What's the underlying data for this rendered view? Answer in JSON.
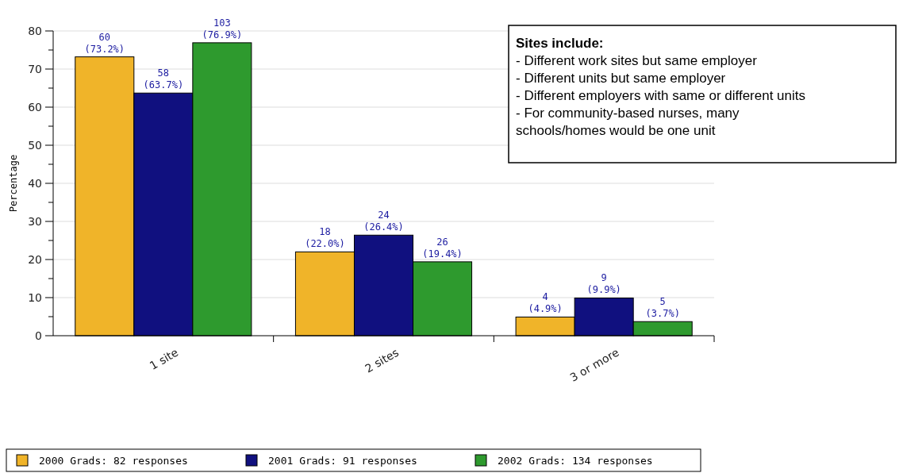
{
  "chart_data": {
    "type": "bar",
    "ylabel": "Percentage",
    "categories": [
      "1 site",
      "2 sites",
      "3 or more"
    ],
    "series": [
      {
        "name": "2000 Grads: 82 responses",
        "color": "#f0b429",
        "values": [
          73.2,
          22.0,
          4.9
        ],
        "value_labels": [
          "60\n(73.2%)",
          "18\n(22.0%)",
          "4\n(4.9%)"
        ]
      },
      {
        "name": "2001 Grads: 91 responses",
        "color": "#10107f",
        "values": [
          63.7,
          26.4,
          9.9
        ],
        "value_labels": [
          "58\n(63.7%)",
          "24\n(26.4%)",
          "9\n(9.9%)"
        ]
      },
      {
        "name": "2002 Grads: 134 responses",
        "color": "#2e9a2e",
        "values": [
          76.9,
          19.4,
          3.7
        ],
        "value_labels": [
          "103\n(76.9%)",
          "26\n(19.4%)",
          "5\n(3.7%)"
        ]
      }
    ],
    "ylim": [
      0,
      80
    ],
    "yticks": [
      0,
      {
        "value": 5,
        "label": null
      },
      10,
      {
        "value": 15,
        "label": null
      },
      20,
      {
        "value": 25,
        "label": null
      },
      30,
      {
        "value": 35,
        "label": null
      },
      40,
      {
        "value": 45,
        "label": null
      },
      50,
      {
        "value": 55,
        "label": null
      },
      60,
      {
        "value": 65,
        "label": null
      },
      70,
      {
        "value": 75,
        "label": null
      },
      80
    ],
    "grid": "y",
    "legend": "bottom",
    "annotations": [
      "Sites include:",
      "- Different work sites but same employer",
      "- Different units but same employer",
      "- Different employers with same or different units",
      "- For community-based nurses, many",
      "schools/homes would be one unit"
    ]
  }
}
